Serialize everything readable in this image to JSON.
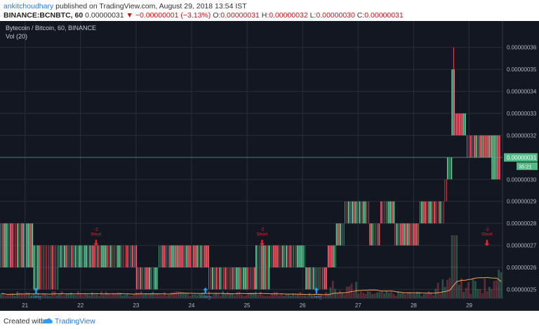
{
  "header": {
    "author": "ankitchoudhary",
    "published_text": "published on TradingView.com, August 29, 2018 13:54 IST",
    "symbol": "BINANCE:BCNBTC, 60",
    "last": "0.00000031",
    "change": "−0.00000001 (−3.13%)",
    "open_label": "O:",
    "open": "0.00000031",
    "high_label": "H:",
    "high": "0.00000032",
    "low_label": "L:",
    "low": "0.00000030",
    "close_label": "C:",
    "close": "0.00000031"
  },
  "legend": {
    "title": "Bytecoin / Bitcoin, 60, BINANCE",
    "volume": "Vol (20)"
  },
  "price_box": {
    "value": "0.00000031",
    "countdown": "35:21"
  },
  "footer": {
    "created_with": "Created with",
    "brand": "TradingView"
  },
  "colors": {
    "background": "#131722",
    "up": "#53b987",
    "down": "#eb4d5c",
    "grid": "#2a2e39",
    "axis_text": "#b2b5be",
    "short_signal": "#e8262c",
    "long_signal": "#2e9cf0",
    "volume_ma": "#f5a25d"
  },
  "chart_data": {
    "type": "candlestick",
    "title": "Bytecoin / Bitcoin, 60, BINANCE",
    "interval": "60",
    "price_axis": {
      "ticks": [
        "0.00000025",
        "0.00000026",
        "0.00000027",
        "0.00000028",
        "0.00000029",
        "0.00000030",
        "0.00000031",
        "0.00000032",
        "0.00000033",
        "0.00000034",
        "0.00000035",
        "0.00000036"
      ],
      "ylim": [
        2.46e-07,
        3.72e-07
      ]
    },
    "time_axis": {
      "ticks": [
        "21",
        "22",
        "23",
        "24",
        "25",
        "26",
        "27",
        "28",
        "29"
      ]
    },
    "grid": true,
    "segments": [
      {
        "days": [
          20.33,
          21.15
        ],
        "lo": 2.6e-07,
        "hi": 2.8e-07
      },
      {
        "days": [
          21.15,
          21.6
        ],
        "lo": 2.5e-07,
        "hi": 2.7e-07
      },
      {
        "days": [
          21.6,
          22.2
        ],
        "lo": 2.6e-07,
        "hi": 2.7e-07
      },
      {
        "days": [
          22.2,
          23.0
        ],
        "lo": 2.6e-07,
        "hi": 2.7e-07
      },
      {
        "days": [
          23.0,
          23.4
        ],
        "lo": 2.5e-07,
        "hi": 2.6e-07
      },
      {
        "days": [
          23.4,
          24.3
        ],
        "lo": 2.6e-07,
        "hi": 2.7e-07
      },
      {
        "days": [
          24.3,
          25.15
        ],
        "lo": 2.5e-07,
        "hi": 2.6e-07
      },
      {
        "days": [
          25.15,
          25.4
        ],
        "lo": 2.5e-07,
        "hi": 2.7e-07
      },
      {
        "days": [
          25.4,
          26.05
        ],
        "lo": 2.6e-07,
        "hi": 2.7e-07
      },
      {
        "days": [
          26.05,
          26.45
        ],
        "lo": 2.5e-07,
        "hi": 2.6e-07
      },
      {
        "days": [
          26.45,
          26.6
        ],
        "lo": 2.6e-07,
        "hi": 2.7e-07
      },
      {
        "days": [
          26.6,
          26.75
        ],
        "lo": 2.7e-07,
        "hi": 2.8e-07
      },
      {
        "days": [
          26.75,
          27.2
        ],
        "lo": 2.8e-07,
        "hi": 2.9e-07
      },
      {
        "days": [
          27.2,
          27.4
        ],
        "lo": 2.7e-07,
        "hi": 2.8e-07
      },
      {
        "days": [
          27.4,
          27.65
        ],
        "lo": 2.8e-07,
        "hi": 2.9e-07
      },
      {
        "days": [
          27.65,
          28.1
        ],
        "lo": 2.7e-07,
        "hi": 2.8e-07
      },
      {
        "days": [
          28.1,
          28.55
        ],
        "lo": 2.8e-07,
        "hi": 2.9e-07
      },
      {
        "days": [
          28.55,
          28.6
        ],
        "lo": 2.9e-07,
        "hi": 3e-07
      },
      {
        "days": [
          28.6,
          28.68
        ],
        "lo": 3e-07,
        "hi": 3.1e-07
      },
      {
        "days": [
          28.68,
          28.75
        ],
        "lo": 3.2e-07,
        "hi": 3.5e-07
      },
      {
        "days": [
          28.75,
          28.95
        ],
        "lo": 3.2e-07,
        "hi": 3.3e-07
      },
      {
        "days": [
          28.95,
          29.4
        ],
        "lo": 3.1e-07,
        "hi": 3.2e-07
      },
      {
        "days": [
          29.4,
          29.55
        ],
        "lo": 3e-07,
        "hi": 3.2e-07
      }
    ],
    "max_high": 3.6e-07,
    "last_price": 3.1e-07,
    "signals": [
      {
        "type": "long",
        "day": 21.2,
        "label": "Long"
      },
      {
        "type": "short",
        "day": 22.28,
        "label": "Short",
        "qty": "-2"
      },
      {
        "type": "long",
        "day": 24.25,
        "label": "Long"
      },
      {
        "type": "short",
        "day": 25.27,
        "label": "Short",
        "qty": "-2"
      },
      {
        "type": "long",
        "day": 26.25,
        "label": "Long"
      },
      {
        "type": "short",
        "day": 29.32,
        "label": "Short",
        "qty": "-2"
      }
    ],
    "volume": {
      "name": "Vol (20)",
      "ma_length": 20
    }
  }
}
